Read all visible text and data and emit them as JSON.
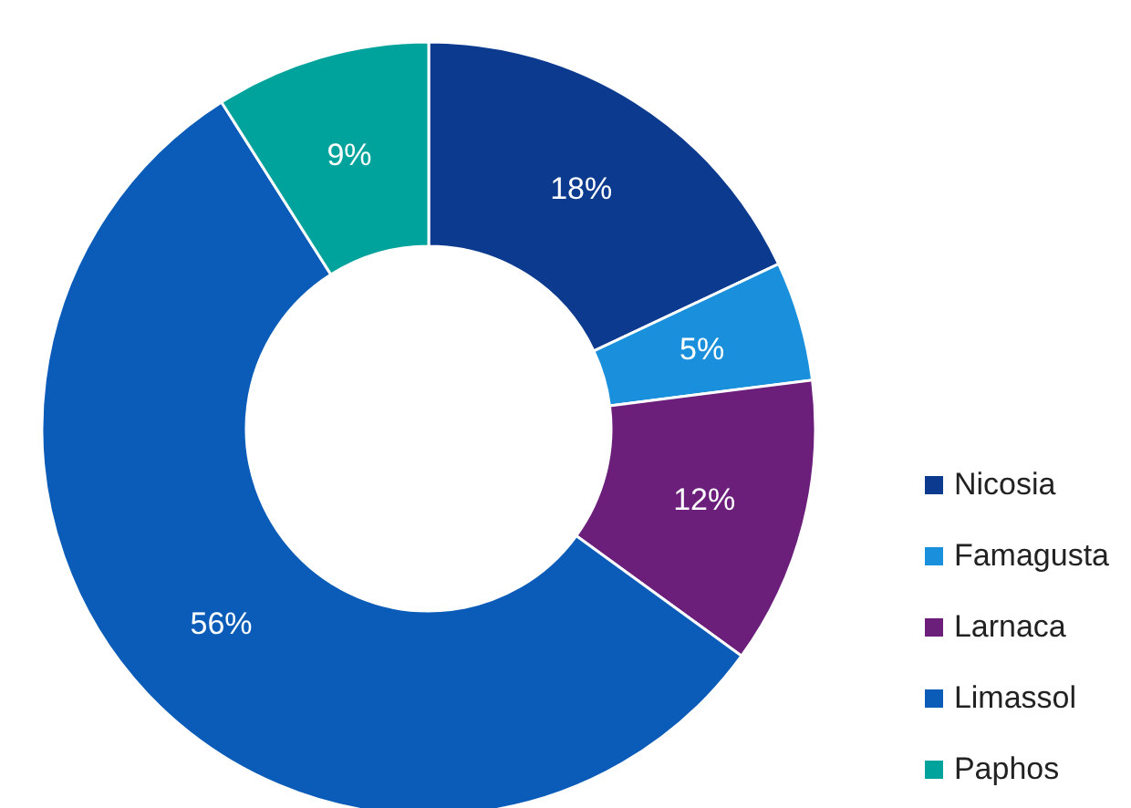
{
  "chart_data": {
    "type": "donut",
    "categories": [
      "Nicosia",
      "Famagusta",
      "Larnaca",
      "Limassol",
      "Paphos"
    ],
    "values": [
      18,
      5,
      12,
      56,
      9
    ],
    "value_labels": [
      "18%",
      "5%",
      "12%",
      "56%",
      "9%"
    ],
    "colors": [
      "#0b3a8f",
      "#1a90dc",
      "#6b1f7b",
      "#0a5cb8",
      "#00a39b"
    ],
    "legend": "bottom right"
  }
}
